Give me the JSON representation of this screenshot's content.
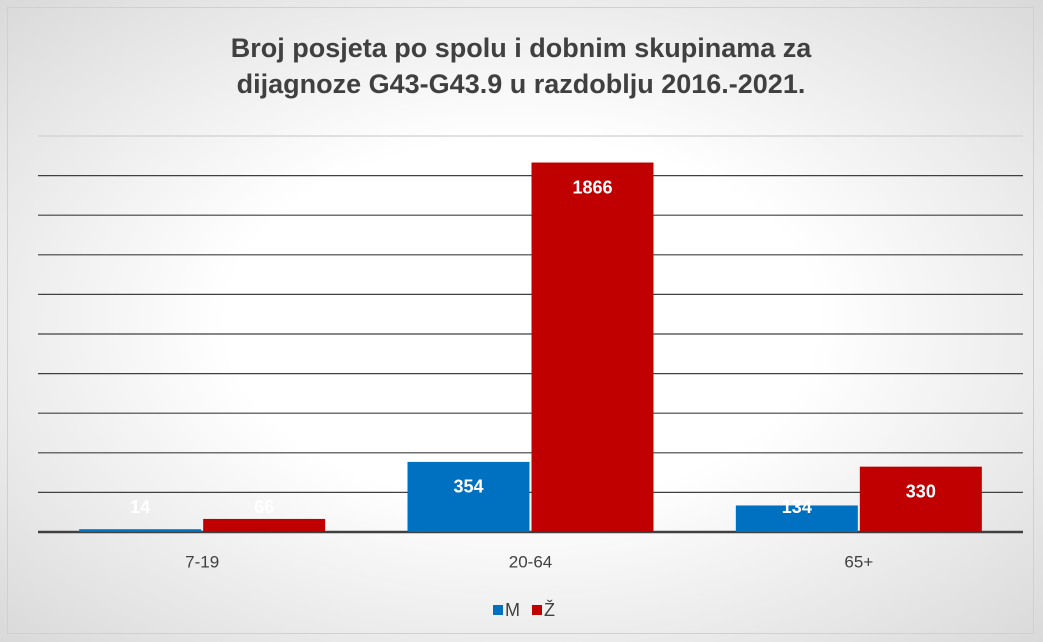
{
  "chart_data": {
    "type": "bar",
    "title": "Broj posjeta po spolu i dobnim skupinama za dijagnoze G43-G43.9 u razdoblju 2016.-2021.",
    "categories": [
      "7-19",
      "20-64",
      "65+"
    ],
    "series": [
      {
        "name": "M",
        "color": "#0070c0",
        "values": [
          14,
          354,
          134
        ]
      },
      {
        "name": "Ž",
        "color": "#c00000",
        "values": [
          66,
          1866,
          330
        ]
      }
    ],
    "ylim": [
      0,
      2000
    ],
    "yticks": [
      0,
      200,
      400,
      600,
      800,
      1000,
      1200,
      1400,
      1600,
      1800,
      2000
    ],
    "grid": true,
    "legend": "bottom"
  }
}
